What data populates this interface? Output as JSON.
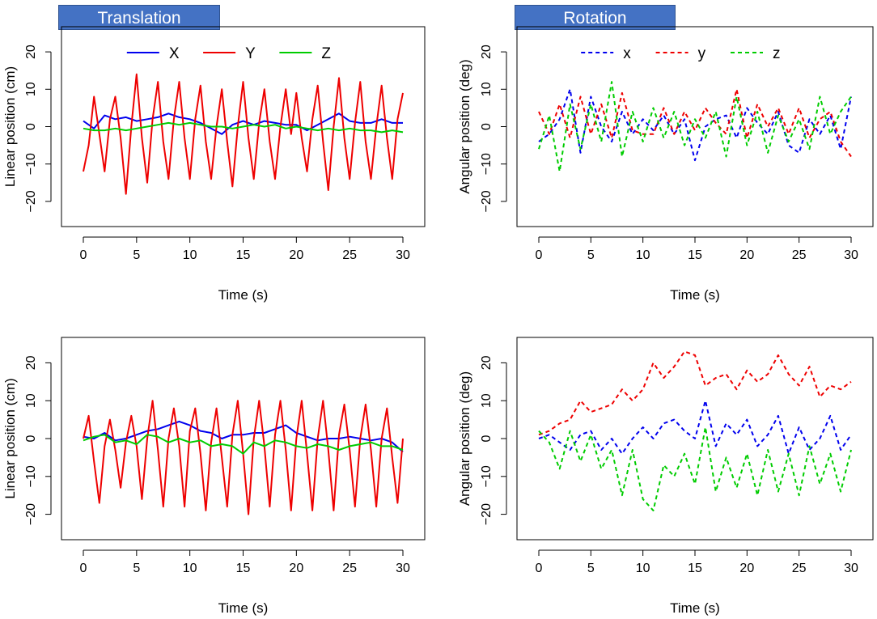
{
  "titles": {
    "translation": "Translation",
    "rotation": "Rotation"
  },
  "colors": {
    "X": "#0000ee",
    "Y": "#ee0000",
    "Z": "#00cc00"
  },
  "chart_data": [
    {
      "type": "line",
      "panel": "top-left",
      "xlabel": "Time (s)",
      "ylabel": "Linear position (cm)",
      "xlim": [
        0,
        30
      ],
      "ylim": [
        -25,
        25
      ],
      "xticks": [
        "0",
        "5",
        "10",
        "15",
        "20",
        "25",
        "30"
      ],
      "yticks": [
        "−20",
        "−10",
        "0",
        "10",
        "20"
      ],
      "line_style": "solid",
      "legend": [
        "X",
        "Y",
        "Z"
      ],
      "legend_position": "top",
      "series": [
        {
          "name": "X",
          "color": "#0000ee",
          "x": [
            0,
            1,
            2,
            3,
            4,
            5,
            6,
            7,
            8,
            9,
            10,
            11,
            12,
            13,
            14,
            15,
            16,
            17,
            18,
            19,
            20,
            21,
            22,
            23,
            24,
            25,
            26,
            27,
            28,
            29,
            30
          ],
          "values": [
            1.5,
            -0.5,
            3,
            2,
            2.5,
            1.5,
            2,
            2.5,
            3.5,
            2.5,
            2,
            1,
            -0.5,
            -2,
            0.5,
            1.5,
            0.5,
            1.5,
            1,
            0.5,
            0.5,
            -1,
            0.5,
            2,
            3.5,
            1.5,
            1,
            1,
            2,
            1,
            1
          ]
        },
        {
          "name": "Y",
          "color": "#ee0000",
          "x": [
            0,
            0.5,
            1,
            1.5,
            2,
            2.5,
            3,
            3.5,
            4,
            4.5,
            5,
            5.5,
            6,
            6.5,
            7,
            7.5,
            8,
            8.5,
            9,
            9.5,
            10,
            10.5,
            11,
            11.5,
            12,
            12.5,
            13,
            13.5,
            14,
            14.5,
            15,
            15.5,
            16,
            16.5,
            17,
            17.5,
            18,
            18.5,
            19,
            19.5,
            20,
            20.5,
            21,
            21.5,
            22,
            22.5,
            23,
            23.5,
            24,
            24.5,
            25,
            25.5,
            26,
            26.5,
            27,
            27.5,
            28,
            28.5,
            29,
            29.5,
            30
          ],
          "values": [
            -12,
            -5,
            8,
            -2,
            -12,
            2,
            8,
            -3,
            -18,
            0,
            14,
            -3,
            -15,
            2,
            12,
            -4,
            -14,
            2,
            12,
            -3,
            -14,
            2,
            11,
            -4,
            -14,
            0,
            10,
            -4,
            -16,
            0,
            12,
            -3,
            -14,
            1,
            10,
            -4,
            -14,
            0,
            10,
            -2,
            9,
            -3,
            -12,
            2,
            11,
            -4,
            -17,
            0,
            13,
            -3,
            -14,
            1,
            12,
            -4,
            -14,
            0,
            11,
            -3,
            -14,
            2,
            9
          ]
        },
        {
          "name": "Z",
          "color": "#00cc00",
          "x": [
            0,
            1,
            2,
            3,
            4,
            5,
            6,
            7,
            8,
            9,
            10,
            11,
            12,
            13,
            14,
            15,
            16,
            17,
            18,
            19,
            20,
            21,
            22,
            23,
            24,
            25,
            26,
            27,
            28,
            29,
            30
          ],
          "values": [
            -0.5,
            -1,
            -1,
            -0.5,
            -1,
            -0.5,
            0,
            0.5,
            1,
            0.5,
            1,
            0.5,
            0,
            0,
            -0.5,
            0,
            0.5,
            0,
            0.5,
            -0.5,
            0,
            -0.5,
            -1,
            -0.5,
            -1,
            -0.5,
            -1,
            -1,
            -1.5,
            -1,
            -1.5
          ]
        }
      ]
    },
    {
      "type": "line",
      "panel": "top-right",
      "xlabel": "Time (s)",
      "ylabel": "Angular position (deg)",
      "xlim": [
        0,
        30
      ],
      "ylim": [
        -25,
        25
      ],
      "xticks": [
        "0",
        "5",
        "10",
        "15",
        "20",
        "25",
        "30"
      ],
      "yticks": [
        "−20",
        "−10",
        "0",
        "10",
        "20"
      ],
      "line_style": "dashed",
      "legend": [
        "x",
        "y",
        "z"
      ],
      "legend_position": "top",
      "series": [
        {
          "name": "x",
          "color": "#0000ee",
          "x": [
            0,
            1,
            2,
            3,
            4,
            5,
            6,
            7,
            8,
            9,
            10,
            11,
            12,
            13,
            14,
            15,
            16,
            17,
            18,
            19,
            20,
            21,
            22,
            23,
            24,
            25,
            26,
            27,
            28,
            29,
            30
          ],
          "values": [
            -4,
            -2,
            2,
            10,
            -7,
            8,
            0,
            -4,
            4,
            -2,
            2,
            -1,
            3,
            -2,
            2,
            -9,
            0,
            2,
            3,
            -3,
            5,
            1,
            -2,
            4,
            -5,
            -7,
            2,
            -2,
            3,
            -6,
            8
          ]
        },
        {
          "name": "y",
          "color": "#ee0000",
          "x": [
            0,
            1,
            2,
            3,
            4,
            5,
            6,
            7,
            8,
            9,
            10,
            11,
            12,
            13,
            14,
            15,
            16,
            17,
            18,
            19,
            20,
            21,
            22,
            23,
            24,
            25,
            26,
            27,
            28,
            29,
            30
          ],
          "values": [
            4,
            -2,
            6,
            -3,
            8,
            -2,
            6,
            -3,
            9,
            -1,
            -2,
            -2,
            5,
            -2,
            4,
            -1,
            5,
            1,
            -2,
            10,
            -3,
            6,
            0,
            5,
            -2,
            5,
            -3,
            2,
            4,
            -4,
            -8
          ]
        },
        {
          "name": "z",
          "color": "#00cc00",
          "x": [
            0,
            1,
            2,
            3,
            4,
            5,
            6,
            7,
            8,
            9,
            10,
            11,
            12,
            13,
            14,
            15,
            16,
            17,
            18,
            19,
            20,
            21,
            22,
            23,
            24,
            25,
            26,
            27,
            28,
            29,
            30
          ],
          "values": [
            -6,
            3,
            -12,
            6,
            -6,
            6,
            -4,
            12,
            -8,
            4,
            -4,
            5,
            -3,
            4,
            -5,
            2,
            -3,
            4,
            -8,
            8,
            -5,
            4,
            -7,
            3,
            -4,
            2,
            -6,
            8,
            -2,
            4,
            8
          ]
        }
      ]
    },
    {
      "type": "line",
      "panel": "bottom-left",
      "xlabel": "Time (s)",
      "ylabel": "Linear position (cm)",
      "xlim": [
        0,
        30
      ],
      "ylim": [
        -25,
        25
      ],
      "xticks": [
        "0",
        "5",
        "10",
        "15",
        "20",
        "25",
        "30"
      ],
      "yticks": [
        "−20",
        "−10",
        "0",
        "10",
        "20"
      ],
      "line_style": "solid",
      "series": [
        {
          "name": "X",
          "color": "#0000ee",
          "x": [
            0,
            1,
            2,
            3,
            4,
            5,
            6,
            7,
            8,
            9,
            10,
            11,
            12,
            13,
            14,
            15,
            16,
            17,
            18,
            19,
            20,
            21,
            22,
            23,
            24,
            25,
            26,
            27,
            28,
            29,
            30
          ],
          "values": [
            0.5,
            0,
            1.5,
            -0.5,
            0,
            1,
            2,
            2.5,
            3.5,
            4.5,
            3.5,
            2,
            1.5,
            0,
            1,
            1,
            1.5,
            1.5,
            2.5,
            3.5,
            1.5,
            0.5,
            -0.5,
            0,
            0,
            0.5,
            0,
            -0.5,
            0,
            -1,
            -3.5
          ]
        },
        {
          "name": "Y",
          "color": "#ee0000",
          "x": [
            0,
            0.5,
            1,
            1.5,
            2,
            2.5,
            3,
            3.5,
            4,
            4.5,
            5,
            5.5,
            6,
            6.5,
            7,
            7.5,
            8,
            8.5,
            9,
            9.5,
            10,
            10.5,
            11,
            11.5,
            12,
            12.5,
            13,
            13.5,
            14,
            14.5,
            15,
            15.5,
            16,
            16.5,
            17,
            17.5,
            18,
            18.5,
            19,
            19.5,
            20,
            20.5,
            21,
            21.5,
            22,
            22.5,
            23,
            23.5,
            24,
            24.5,
            25,
            25.5,
            26,
            26.5,
            27,
            27.5,
            28,
            28.5,
            29,
            29.5,
            30
          ],
          "values": [
            0,
            6,
            -6,
            -17,
            -2,
            5,
            -3,
            -13,
            -1,
            6,
            -2,
            -16,
            0,
            10,
            -3,
            -18,
            0,
            8,
            -2,
            -18,
            2,
            8,
            -4,
            -19,
            -1,
            8,
            -5,
            -18,
            1,
            10,
            -4,
            -20,
            0,
            10,
            -2,
            -18,
            1,
            10,
            -3,
            -19,
            0,
            10,
            -4,
            -19,
            0,
            10,
            -3,
            -19,
            1,
            9,
            -3,
            -18,
            0,
            9,
            -3,
            -18,
            0,
            8,
            -5,
            -17,
            0
          ]
        },
        {
          "name": "Z",
          "color": "#00cc00",
          "x": [
            0,
            1,
            2,
            3,
            4,
            5,
            6,
            7,
            8,
            9,
            10,
            11,
            12,
            13,
            14,
            15,
            16,
            17,
            18,
            19,
            20,
            21,
            22,
            23,
            24,
            25,
            26,
            27,
            28,
            29,
            30
          ],
          "values": [
            -0.5,
            0.5,
            1,
            -1,
            -0.5,
            -1.5,
            1,
            0.5,
            -1,
            0,
            -1,
            -0.5,
            -2,
            -1.5,
            -2,
            -4,
            -1,
            -2,
            -0.5,
            -1,
            -2,
            -2.5,
            -1.5,
            -2,
            -3,
            -2,
            -1.5,
            -1,
            -2,
            -2,
            -3
          ]
        }
      ]
    },
    {
      "type": "line",
      "panel": "bottom-right",
      "xlabel": "Time (s)",
      "ylabel": "Angular position (deg)",
      "xlim": [
        0,
        30
      ],
      "ylim": [
        -25,
        25
      ],
      "xticks": [
        "0",
        "5",
        "10",
        "15",
        "20",
        "25",
        "30"
      ],
      "yticks": [
        "−20",
        "−10",
        "0",
        "10",
        "20"
      ],
      "line_style": "dashed",
      "series": [
        {
          "name": "x",
          "color": "#0000ee",
          "x": [
            0,
            1,
            2,
            3,
            4,
            5,
            6,
            7,
            8,
            9,
            10,
            11,
            12,
            13,
            14,
            15,
            16,
            17,
            18,
            19,
            20,
            21,
            22,
            23,
            24,
            25,
            26,
            27,
            28,
            29,
            30
          ],
          "values": [
            0,
            1,
            -1,
            -3,
            1,
            2,
            -3,
            0,
            -4,
            0,
            3,
            0,
            4,
            5,
            2,
            0,
            10,
            -2,
            4,
            1,
            5,
            -2,
            1,
            6,
            -4,
            3,
            -3,
            0,
            6,
            -3,
            1
          ]
        },
        {
          "name": "y",
          "color": "#ee0000",
          "x": [
            0,
            1,
            2,
            3,
            4,
            5,
            6,
            7,
            8,
            9,
            10,
            11,
            12,
            13,
            14,
            15,
            16,
            17,
            18,
            19,
            20,
            21,
            22,
            23,
            24,
            25,
            26,
            27,
            28,
            29,
            30
          ],
          "values": [
            1,
            2,
            4,
            5,
            10,
            7,
            8,
            9,
            13,
            10,
            13,
            20,
            16,
            19,
            23,
            22,
            14,
            16,
            17,
            13,
            18,
            15,
            17,
            22,
            17,
            14,
            19,
            11,
            14,
            13,
            15
          ]
        },
        {
          "name": "z",
          "color": "#00cc00",
          "x": [
            0,
            1,
            2,
            3,
            4,
            5,
            6,
            7,
            8,
            9,
            10,
            11,
            12,
            13,
            14,
            15,
            16,
            17,
            18,
            19,
            20,
            21,
            22,
            23,
            24,
            25,
            26,
            27,
            28,
            29,
            30
          ],
          "values": [
            2,
            -1,
            -8,
            2,
            -6,
            1,
            -8,
            -3,
            -15,
            -3,
            -16,
            -19,
            -7,
            -10,
            -4,
            -12,
            3,
            -14,
            -5,
            -13,
            -4,
            -15,
            -3,
            -14,
            -4,
            -15,
            -2,
            -12,
            -4,
            -14,
            -3
          ]
        }
      ]
    }
  ]
}
